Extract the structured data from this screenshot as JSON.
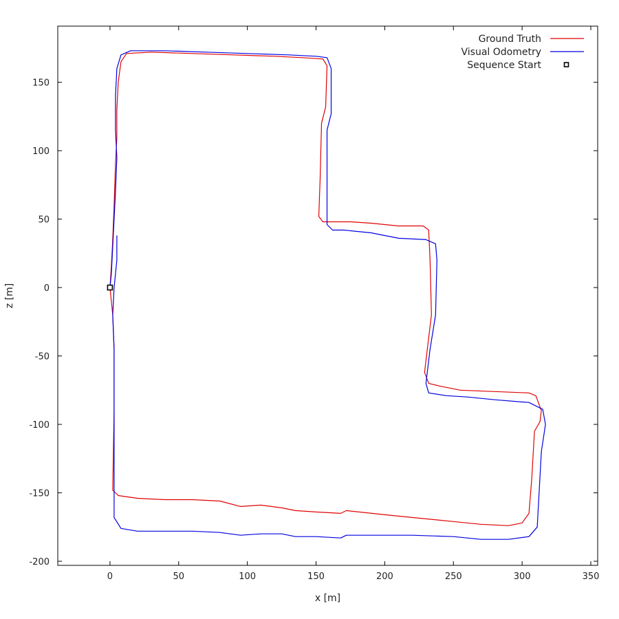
{
  "chart_data": {
    "type": "line",
    "title": "",
    "xlabel": "x [m]",
    "ylabel": "z [m]",
    "xlim": [
      -38,
      355
    ],
    "ylim": [
      -203,
      191
    ],
    "xticks": [
      0,
      50,
      100,
      150,
      200,
      250,
      300,
      350
    ],
    "yticks": [
      -200,
      -150,
      -100,
      -50,
      0,
      50,
      100,
      150
    ],
    "grid": false,
    "legend_position": "top-right",
    "series": [
      {
        "name": "Ground Truth",
        "color": "#e00000",
        "points": [
          [
            0,
            0
          ],
          [
            2,
            -20
          ],
          [
            3,
            -45
          ],
          [
            3,
            -90
          ],
          [
            2,
            -148
          ],
          [
            6,
            -152
          ],
          [
            20,
            -154
          ],
          [
            40,
            -155
          ],
          [
            60,
            -155
          ],
          [
            80,
            -156
          ],
          [
            95,
            -160
          ],
          [
            110,
            -159
          ],
          [
            125,
            -161
          ],
          [
            135,
            -163
          ],
          [
            150,
            -164
          ],
          [
            168,
            -165
          ],
          [
            172,
            -163
          ],
          [
            200,
            -166
          ],
          [
            220,
            -168
          ],
          [
            250,
            -171
          ],
          [
            270,
            -173
          ],
          [
            290,
            -174
          ],
          [
            300,
            -172
          ],
          [
            305,
            -165
          ],
          [
            307,
            -140
          ],
          [
            309,
            -105
          ],
          [
            313,
            -98
          ],
          [
            314,
            -90
          ],
          [
            310,
            -79
          ],
          [
            305,
            -77
          ],
          [
            280,
            -76
          ],
          [
            255,
            -75
          ],
          [
            240,
            -72
          ],
          [
            232,
            -70
          ],
          [
            229,
            -62
          ],
          [
            231,
            -45
          ],
          [
            234,
            -20
          ],
          [
            233,
            20
          ],
          [
            232,
            42
          ],
          [
            228,
            45
          ],
          [
            210,
            45
          ],
          [
            190,
            47
          ],
          [
            175,
            48
          ],
          [
            155,
            48
          ],
          [
            152,
            52
          ],
          [
            153,
            80
          ],
          [
            154,
            120
          ],
          [
            157,
            132
          ],
          [
            158,
            162
          ],
          [
            155,
            167
          ],
          [
            140,
            168
          ],
          [
            120,
            169
          ],
          [
            90,
            170
          ],
          [
            60,
            171
          ],
          [
            30,
            172
          ],
          [
            12,
            171
          ],
          [
            8,
            165
          ],
          [
            6,
            150
          ],
          [
            5,
            130
          ],
          [
            5,
            110
          ],
          [
            4,
            90
          ],
          [
            3,
            60
          ],
          [
            2,
            35
          ],
          [
            1,
            15
          ],
          [
            0,
            0
          ]
        ]
      },
      {
        "name": "Visual Odometry",
        "color": "#0000e0",
        "points": [
          [
            5,
            38
          ],
          [
            5,
            20
          ],
          [
            3,
            0
          ],
          [
            2,
            -20
          ],
          [
            3,
            -45
          ],
          [
            3,
            -90
          ],
          [
            3,
            -130
          ],
          [
            3,
            -168
          ],
          [
            8,
            -176
          ],
          [
            20,
            -178
          ],
          [
            40,
            -178
          ],
          [
            60,
            -178
          ],
          [
            80,
            -179
          ],
          [
            95,
            -181
          ],
          [
            110,
            -180
          ],
          [
            125,
            -180
          ],
          [
            135,
            -182
          ],
          [
            150,
            -182
          ],
          [
            168,
            -183
          ],
          [
            172,
            -181
          ],
          [
            200,
            -181
          ],
          [
            220,
            -181
          ],
          [
            250,
            -182
          ],
          [
            270,
            -184
          ],
          [
            290,
            -184
          ],
          [
            305,
            -182
          ],
          [
            311,
            -175
          ],
          [
            314,
            -120
          ],
          [
            317,
            -100
          ],
          [
            315,
            -89
          ],
          [
            305,
            -84
          ],
          [
            280,
            -82
          ],
          [
            260,
            -80
          ],
          [
            245,
            -79
          ],
          [
            232,
            -77
          ],
          [
            230,
            -70
          ],
          [
            233,
            -45
          ],
          [
            237,
            -20
          ],
          [
            238,
            20
          ],
          [
            237,
            32
          ],
          [
            230,
            35
          ],
          [
            210,
            36
          ],
          [
            190,
            40
          ],
          [
            170,
            42
          ],
          [
            162,
            42
          ],
          [
            158,
            46
          ],
          [
            158,
            80
          ],
          [
            158,
            115
          ],
          [
            161,
            127
          ],
          [
            161,
            160
          ],
          [
            158,
            168
          ],
          [
            150,
            169
          ],
          [
            130,
            170
          ],
          [
            100,
            171
          ],
          [
            70,
            172
          ],
          [
            40,
            173
          ],
          [
            15,
            173
          ],
          [
            8,
            170
          ],
          [
            5,
            160
          ],
          [
            4,
            140
          ],
          [
            4,
            115
          ],
          [
            5,
            95
          ],
          [
            4,
            70
          ],
          [
            3,
            50
          ],
          [
            2,
            30
          ],
          [
            1,
            10
          ],
          [
            0,
            0
          ]
        ]
      },
      {
        "name": "Sequence Start",
        "color": "#000000",
        "marker": "square",
        "points": [
          [
            0,
            0
          ]
        ]
      }
    ]
  }
}
